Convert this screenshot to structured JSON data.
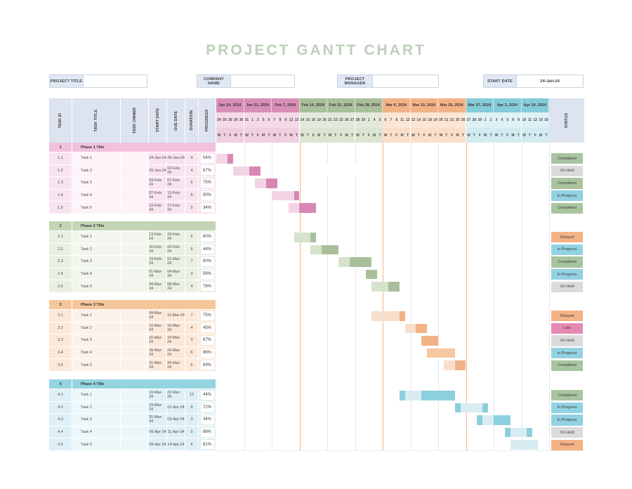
{
  "title": "PROJECT GANTT CHART",
  "fields": [
    {
      "label": "PROJECT TITLE",
      "value": ""
    },
    {
      "label": "COMPANY NAME",
      "value": ""
    },
    {
      "label": "PROJECT MANAGER",
      "value": ""
    },
    {
      "label": "START DATE",
      "value": "24-Jan-24"
    }
  ],
  "table": {
    "columns": [
      "TASK ID",
      "TASK TITLE",
      "TASK OWNER",
      "START DATE",
      "DUE DATE",
      "DURATION",
      "PROGRESS"
    ],
    "status_header": "STATUS"
  },
  "timeline": {
    "day_letters": [
      "W",
      "T",
      "F",
      "M",
      "T"
    ],
    "weeks": [
      {
        "label": "Jan 24, 2024",
        "days": [
          "24",
          "25",
          "26",
          "29",
          "30"
        ],
        "group": "pink"
      },
      {
        "label": "Jan 31, 2024",
        "days": [
          "31",
          "1",
          "2",
          "5",
          "6"
        ],
        "group": "pink"
      },
      {
        "label": "Feb 7, 2024",
        "days": [
          "7",
          "8",
          "9",
          "12",
          "13"
        ],
        "group": "pink"
      },
      {
        "label": "Feb 14, 2024",
        "days": [
          "14",
          "15",
          "16",
          "19",
          "20"
        ],
        "group": "green"
      },
      {
        "label": "Feb 21, 2024",
        "days": [
          "21",
          "22",
          "23",
          "26",
          "27"
        ],
        "group": "green"
      },
      {
        "label": "Feb 28, 2024",
        "days": [
          "28",
          "29",
          "1",
          "4",
          "5"
        ],
        "group": "green"
      },
      {
        "label": "Mar 6, 2024",
        "days": [
          "6",
          "7",
          "8",
          "11",
          "12"
        ],
        "group": "orange"
      },
      {
        "label": "Mar 13, 2024",
        "days": [
          "13",
          "14",
          "15",
          "18",
          "19"
        ],
        "group": "orange"
      },
      {
        "label": "Mar 20, 2024",
        "days": [
          "20",
          "21",
          "22",
          "25",
          "26"
        ],
        "group": "orange"
      },
      {
        "label": "Mar 27, 2024",
        "days": [
          "27",
          "28",
          "29",
          "1",
          "2"
        ],
        "group": "teal"
      },
      {
        "label": "Apr 3, 2024",
        "days": [
          "3",
          "4",
          "5",
          "8",
          "9"
        ],
        "group": "teal"
      },
      {
        "label": "Apr 10, 2024",
        "days": [
          "10",
          "11",
          "12",
          "15",
          "16"
        ],
        "group": "teal"
      }
    ]
  },
  "phases": [
    {
      "id": "1",
      "title": "Phase 1 Title",
      "group": "pink",
      "tasks": [
        {
          "id": "1.1",
          "title": "Task 1",
          "owner": "",
          "start": "24-Jan-24",
          "due": "28-Jan-24",
          "duration": "4",
          "progress": "54%",
          "status": "Completed",
          "bar": {
            "start": 0,
            "segs": [
              [
                "light",
                2
              ],
              [
                "dark",
                1
              ]
            ]
          }
        },
        {
          "id": "1.2",
          "title": "Task 2",
          "owner": "",
          "start": "29-Jan-24",
          "due": "02-Feb-24",
          "duration": "4",
          "progress": "67%",
          "status": "On Hold",
          "bar": {
            "start": 3,
            "segs": [
              [
                "light",
                3
              ],
              [
                "dark",
                2
              ]
            ]
          }
        },
        {
          "id": "1.3",
          "title": "Task 3",
          "owner": "",
          "start": "03-Feb-24",
          "due": "07-Feb-24",
          "duration": "5",
          "progress": "75%",
          "status": "Completed",
          "bar": {
            "start": 7,
            "segs": [
              [
                "light",
                2
              ],
              [
                "dark",
                2
              ]
            ]
          }
        },
        {
          "id": "1.4",
          "title": "Task 4",
          "owner": "",
          "start": "07-Feb-24",
          "due": "13-Feb-24",
          "duration": "5",
          "progress": "90%",
          "status": "In Progress",
          "bar": {
            "start": 10,
            "segs": [
              [
                "light",
                4
              ],
              [
                "dark",
                1
              ]
            ]
          }
        },
        {
          "id": "1.5",
          "title": "Task 5",
          "owner": "",
          "start": "13-Feb-24",
          "due": "17-Feb-24",
          "duration": "5",
          "progress": "34%",
          "status": "Completed",
          "bar": {
            "start": 13,
            "segs": [
              [
                "light",
                2
              ],
              [
                "dark",
                3
              ]
            ]
          }
        }
      ]
    },
    {
      "id": "2",
      "title": "Phase 2 Title",
      "group": "green",
      "tasks": [
        {
          "id": "2.1",
          "title": "Task 1",
          "owner": "",
          "start": "13-Feb-24",
          "due": "18-Feb-24",
          "duration": "5",
          "progress": "60%",
          "status": "Delayed",
          "bar": {
            "start": 14,
            "segs": [
              [
                "light",
                3
              ],
              [
                "dark",
                1
              ]
            ]
          }
        },
        {
          "id": "2.2",
          "title": "Task 2",
          "owner": "",
          "start": "16-Feb-24",
          "due": "22-Feb-24",
          "duration": "6",
          "progress": "44%",
          "status": "In Progress",
          "bar": {
            "start": 17,
            "segs": [
              [
                "light",
                2
              ],
              [
                "dark",
                3
              ]
            ]
          }
        },
        {
          "id": "2.3",
          "title": "Task 3",
          "owner": "",
          "start": "23-Feb-24",
          "due": "01-Mar-24",
          "duration": "7",
          "progress": "60%",
          "status": "Completed",
          "bar": {
            "start": 22,
            "segs": [
              [
                "light",
                2
              ],
              [
                "dark",
                4
              ]
            ]
          }
        },
        {
          "id": "2.4",
          "title": "Task 4",
          "owner": "",
          "start": "01-Mar-24",
          "due": "04-Mar-24",
          "duration": "3",
          "progress": "58%",
          "status": "In Progress",
          "bar": {
            "start": 27,
            "segs": [
              [
                "dark",
                2
              ]
            ]
          }
        },
        {
          "id": "2.5",
          "title": "Task 5",
          "owner": "",
          "start": "04-Mar-24",
          "due": "08-Mar-24",
          "duration": "4",
          "progress": "79%",
          "status": "On Hold",
          "bar": {
            "start": 28,
            "segs": [
              [
                "light",
                3
              ],
              [
                "dark",
                2
              ]
            ]
          }
        }
      ]
    },
    {
      "id": "3",
      "title": "Phase 3 Title",
      "group": "orange",
      "tasks": [
        {
          "id": "3.1",
          "title": "Task 1",
          "owner": "",
          "start": "04-Mar-24",
          "due": "11-Mar-24",
          "duration": "7",
          "progress": "75%",
          "status": "Delayed",
          "bar": {
            "start": 28,
            "segs": [
              [
                "light",
                5
              ],
              [
                "dark",
                1
              ]
            ]
          }
        },
        {
          "id": "3.2",
          "title": "Task 2",
          "owner": "",
          "start": "12-Mar-24",
          "due": "16-Mar-24",
          "duration": "4",
          "progress": "45%",
          "status": "Late",
          "bar": {
            "start": 34,
            "segs": [
              [
                "light",
                2
              ],
              [
                "dark",
                2
              ]
            ]
          }
        },
        {
          "id": "3.3",
          "title": "Task 3",
          "owner": "",
          "start": "16-Mar-24",
          "due": "19-Mar-24",
          "duration": "3",
          "progress": "67%",
          "status": "On Hold",
          "bar": {
            "start": 37,
            "segs": [
              [
                "dark",
                3
              ]
            ]
          }
        },
        {
          "id": "3.4",
          "title": "Task 4",
          "owner": "",
          "start": "18-Mar-24",
          "due": "24-Mar-24",
          "duration": "6",
          "progress": "86%",
          "status": "In Progress",
          "bar": {
            "start": 38,
            "segs": [
              [
                "mid",
                5
              ]
            ]
          }
        },
        {
          "id": "3.5",
          "title": "Task 5",
          "owner": "",
          "start": "21-Mar-24",
          "due": "26-Mar-24",
          "duration": "5",
          "progress": "69%",
          "status": "Completed",
          "bar": {
            "start": 41,
            "segs": [
              [
                "light",
                2
              ],
              [
                "dark",
                2
              ]
            ]
          }
        }
      ]
    },
    {
      "id": "4",
      "title": "Phase 4 Title",
      "group": "teal",
      "tasks": [
        {
          "id": "4.1",
          "title": "Task 1",
          "owner": "",
          "start": "10-Mar-24",
          "due": "22-Mar-24",
          "duration": "12",
          "progress": "44%",
          "status": "Completed",
          "bar": {
            "start": 33,
            "segs": [
              [
                "dark",
                1
              ],
              [
                "light",
                3
              ],
              [
                "dark",
                6
              ]
            ]
          }
        },
        {
          "id": "4.2",
          "title": "Task 2",
          "owner": "",
          "start": "23-Mar-24",
          "due": "01-Apr-24",
          "duration": "9",
          "progress": "72%",
          "status": "In Progress",
          "bar": {
            "start": 43,
            "segs": [
              [
                "dark",
                1
              ],
              [
                "light",
                4
              ],
              [
                "dark",
                1
              ]
            ]
          }
        },
        {
          "id": "4.3",
          "title": "Task 3",
          "owner": "",
          "start": "31-Mar-24",
          "due": "03-Apr-24",
          "duration": "3",
          "progress": "34%",
          "status": "In Progress",
          "bar": {
            "start": 47,
            "segs": [
              [
                "dark",
                1
              ],
              [
                "light",
                2
              ],
              [
                "dark",
                3
              ]
            ]
          }
        },
        {
          "id": "4.4",
          "title": "Task 4",
          "owner": "",
          "start": "06-Apr-24",
          "due": "11-Apr-24",
          "duration": "5",
          "progress": "88%",
          "status": "On Hold",
          "bar": {
            "start": 52,
            "segs": [
              [
                "dark",
                1
              ],
              [
                "light",
                3
              ],
              [
                "dark",
                1
              ]
            ]
          }
        },
        {
          "id": "4.5",
          "title": "Task 5",
          "owner": "",
          "start": "08-Apr-24",
          "due": "14-Apr-24",
          "duration": "6",
          "progress": "91%",
          "status": "Delayed",
          "bar": {
            "start": 53,
            "segs": [
              [
                "light",
                5
              ]
            ]
          }
        }
      ]
    }
  ],
  "status_colors": {
    "Completed": "#a9c4a0",
    "On Hold": "#dbdbdb",
    "In Progress": "#92d2e2",
    "Delayed": "#f5b286",
    "Late": "#e58ab3"
  },
  "palette": {
    "header_bg": "#dde4ef",
    "grid_gray": "#e7e7e7",
    "grid_orange": "#f3b488",
    "title_color": "#bdd0ba",
    "pink": {
      "band": "#d88fb6",
      "days": "#f4d9e8",
      "days2": "#f0cfe2",
      "phaseRow": "#f2c2dc",
      "rowA": "#fdf3f8",
      "rowB": "#f8e4ef",
      "barLight": "#f3d4e5",
      "barMid": "#e7abcc",
      "barDark": "#d887b4"
    },
    "green": {
      "band": "#a9bf99",
      "days": "#e3eadb",
      "days2": "#dce5d2",
      "phaseRow": "#c4d4b6",
      "rowA": "#f2f6ee",
      "rowB": "#e9f0e2",
      "barLight": "#d7e2cc",
      "barMid": "#c0d1ad",
      "barDark": "#a9bf99"
    },
    "orange": {
      "band": "#f2b287",
      "days": "#fbe6d5",
      "days2": "#f9dfc9",
      "phaseRow": "#f6c69b",
      "rowA": "#fdf2e9",
      "rowB": "#fbe8d9",
      "barLight": "#f8dfcc",
      "barMid": "#f5c89f",
      "barDark": "#f2b287"
    },
    "teal": {
      "band": "#85ccd9",
      "days": "#def1f5",
      "days2": "#d2ebf1",
      "phaseRow": "#93d4e0",
      "rowA": "#ecf7fa",
      "rowB": "#def0f5",
      "barLight": "#d8ecf2",
      "barMid": "#b4dfe9",
      "barDark": "#8ccfdd"
    }
  }
}
